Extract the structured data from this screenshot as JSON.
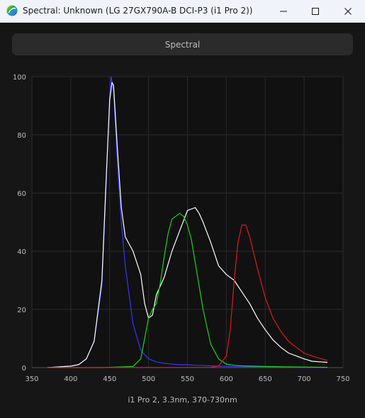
{
  "window": {
    "title": "Spectral: Unknown (LG 27GX790A-B DCI-P3 (i1 Pro 2))",
    "tab_label": "Spectral",
    "icons": {
      "app": "spectrum-app-icon",
      "minimize": "minimize-icon",
      "maximize": "maximize-icon",
      "close": "close-icon"
    }
  },
  "footer": {
    "label": "i1 Pro 2, 3.3nm, 370-730nm"
  },
  "chart_data": {
    "type": "line",
    "xlim": [
      350,
      750
    ],
    "ylim": [
      0,
      100
    ],
    "xticks": [
      350,
      400,
      450,
      500,
      550,
      600,
      650,
      700,
      750
    ],
    "yticks": [
      0,
      20,
      40,
      60,
      80,
      100
    ],
    "grid": true,
    "title": "",
    "xlabel": "",
    "ylabel": "",
    "series": [
      {
        "color": "#3535ff",
        "x": [
          370,
          400,
          410,
          420,
          430,
          440,
          445,
          450,
          452,
          455,
          460,
          465,
          470,
          480,
          490,
          500,
          510,
          520,
          530,
          540,
          550,
          560,
          580,
          600,
          620,
          650,
          700,
          730
        ],
        "y": [
          0,
          0.5,
          1,
          3,
          9,
          28,
          60,
          94,
          100,
          95,
          70,
          50,
          35,
          15,
          6,
          3,
          2,
          1.5,
          1.2,
          1,
          1,
          0.8,
          0.6,
          0.4,
          0.3,
          0.2,
          0.1,
          0.1
        ]
      },
      {
        "color": "#ffffff",
        "x": [
          370,
          400,
          410,
          420,
          430,
          440,
          445,
          450,
          453,
          455,
          460,
          465,
          470,
          480,
          490,
          495,
          500,
          505,
          510,
          520,
          530,
          540,
          550,
          560,
          565,
          570,
          580,
          590,
          600,
          610,
          620,
          630,
          640,
          650,
          660,
          670,
          680,
          690,
          700,
          710,
          720,
          730
        ],
        "y": [
          0,
          0.5,
          1,
          3,
          9,
          30,
          62,
          92,
          98,
          97,
          75,
          55,
          45,
          40,
          32,
          22,
          17,
          18,
          25,
          31,
          40,
          47,
          54,
          55,
          53,
          50,
          43,
          35,
          32,
          30,
          26,
          22,
          17,
          13,
          9.5,
          7,
          5,
          4,
          3,
          2.2,
          2,
          1.8
        ]
      },
      {
        "color": "#1fd21f",
        "x": [
          370,
          440,
          480,
          490,
          495,
          500,
          505,
          510,
          515,
          520,
          525,
          530,
          535,
          540,
          545,
          550,
          555,
          560,
          570,
          580,
          590,
          600,
          610,
          620,
          650,
          700,
          730
        ],
        "y": [
          0,
          0,
          0.4,
          3,
          10,
          17,
          20,
          22,
          29,
          38,
          46,
          51,
          52,
          53,
          52,
          49,
          44,
          36,
          20,
          8,
          3,
          1.2,
          0.8,
          0.6,
          0.4,
          0.2,
          0.1
        ]
      },
      {
        "color": "#e01a1a",
        "x": [
          370,
          580,
          590,
          600,
          605,
          610,
          615,
          620,
          625,
          630,
          640,
          650,
          660,
          670,
          680,
          690,
          700,
          710,
          720,
          730
        ],
        "y": [
          0,
          0.1,
          0.5,
          4,
          13,
          30,
          43,
          49,
          49,
          45,
          34,
          24,
          17,
          12.5,
          9,
          7,
          5,
          4,
          3.2,
          2.5
        ]
      }
    ]
  }
}
